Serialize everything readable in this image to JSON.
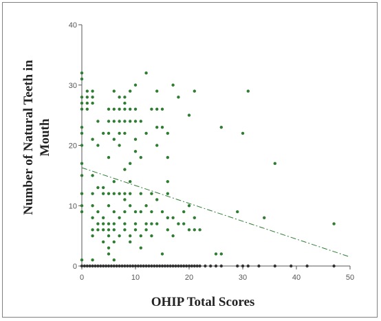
{
  "chart_data": {
    "type": "scatter",
    "xlabel": "OHIP Total Scores",
    "ylabel_lines": [
      "Number of Natural Teeth in",
      "Mouth"
    ],
    "xlim": [
      0,
      50
    ],
    "ylim": [
      0,
      40
    ],
    "x_ticks": [
      0,
      10,
      20,
      30,
      40,
      50
    ],
    "y_ticks": [
      0,
      10,
      20,
      30,
      40
    ],
    "grid": false,
    "colors": {
      "dark_points": "#333333",
      "green_points": "#2e7d32",
      "trend": "#2e7d32"
    },
    "trendline": {
      "style": "dash-dot",
      "x": [
        0,
        50
      ],
      "y": [
        16.3,
        1.5
      ]
    },
    "series": [
      {
        "color_key": "dark_points",
        "points": [
          [
            0,
            0
          ],
          [
            0.5,
            0
          ],
          [
            1,
            0
          ],
          [
            1.5,
            0
          ],
          [
            2,
            0
          ],
          [
            2.5,
            0
          ],
          [
            3,
            0
          ],
          [
            3.5,
            0
          ],
          [
            4,
            0
          ],
          [
            4.5,
            0
          ],
          [
            5,
            0
          ],
          [
            5.5,
            0
          ],
          [
            6,
            0
          ],
          [
            6.5,
            0
          ],
          [
            7,
            0
          ],
          [
            7.5,
            0
          ],
          [
            8,
            0
          ],
          [
            8.5,
            0
          ],
          [
            9,
            0
          ],
          [
            9.5,
            0
          ],
          [
            10,
            0
          ],
          [
            10.5,
            0
          ],
          [
            11,
            0
          ],
          [
            11.5,
            0
          ],
          [
            12,
            0
          ],
          [
            12.5,
            0
          ],
          [
            13,
            0
          ],
          [
            13.5,
            0
          ],
          [
            14,
            0
          ],
          [
            14.5,
            0
          ],
          [
            15,
            0
          ],
          [
            15.5,
            0
          ],
          [
            16,
            0
          ],
          [
            16.5,
            0
          ],
          [
            17,
            0
          ],
          [
            17.5,
            0
          ],
          [
            18,
            0
          ],
          [
            18.5,
            0
          ],
          [
            19,
            0
          ],
          [
            19.5,
            0
          ],
          [
            20,
            0
          ],
          [
            20.5,
            0
          ],
          [
            21,
            0
          ],
          [
            21.5,
            0
          ],
          [
            22,
            0
          ],
          [
            23,
            0
          ],
          [
            24,
            0
          ],
          [
            25,
            0
          ],
          [
            26,
            0
          ],
          [
            29,
            0
          ],
          [
            30,
            0
          ],
          [
            31,
            0
          ],
          [
            33,
            0
          ],
          [
            36,
            0
          ],
          [
            39,
            0
          ],
          [
            42,
            0
          ],
          [
            47,
            0
          ]
        ]
      },
      {
        "color_key": "green_points",
        "points": [
          [
            0,
            32
          ],
          [
            0,
            31
          ],
          [
            0,
            28
          ],
          [
            0,
            27
          ],
          [
            0,
            26
          ],
          [
            0,
            23
          ],
          [
            0,
            22
          ],
          [
            0,
            20
          ],
          [
            0,
            17
          ],
          [
            0,
            15
          ],
          [
            0,
            12
          ],
          [
            0,
            10
          ],
          [
            0,
            9
          ],
          [
            0,
            1
          ],
          [
            1,
            29
          ],
          [
            1,
            28
          ],
          [
            1,
            27
          ],
          [
            1,
            26
          ],
          [
            2,
            29
          ],
          [
            2,
            28
          ],
          [
            2,
            27
          ],
          [
            2,
            21
          ],
          [
            2,
            15
          ],
          [
            2,
            12
          ],
          [
            2,
            10
          ],
          [
            2,
            8
          ],
          [
            2,
            6
          ],
          [
            2,
            5
          ],
          [
            2,
            1
          ],
          [
            3,
            24
          ],
          [
            3,
            20
          ],
          [
            3,
            13
          ],
          [
            3,
            9
          ],
          [
            3,
            7
          ],
          [
            3,
            6
          ],
          [
            4,
            22
          ],
          [
            4,
            13
          ],
          [
            4,
            12
          ],
          [
            4,
            8
          ],
          [
            4,
            7
          ],
          [
            4,
            6
          ],
          [
            4,
            4
          ],
          [
            5,
            26
          ],
          [
            5,
            24
          ],
          [
            5,
            22
          ],
          [
            5,
            18
          ],
          [
            5,
            12
          ],
          [
            5,
            10
          ],
          [
            5,
            7
          ],
          [
            5,
            6
          ],
          [
            5,
            5
          ],
          [
            5,
            3
          ],
          [
            5,
            2
          ],
          [
            6,
            29
          ],
          [
            6,
            26
          ],
          [
            6,
            24
          ],
          [
            6,
            21
          ],
          [
            6,
            14
          ],
          [
            6,
            12
          ],
          [
            6,
            9
          ],
          [
            6,
            7
          ],
          [
            6,
            6
          ],
          [
            6,
            4
          ],
          [
            6,
            1
          ],
          [
            7,
            28
          ],
          [
            7,
            26
          ],
          [
            7,
            24
          ],
          [
            7,
            22
          ],
          [
            7,
            20
          ],
          [
            7,
            12
          ],
          [
            7,
            8
          ],
          [
            7,
            5
          ],
          [
            8,
            28
          ],
          [
            8,
            27
          ],
          [
            8,
            26
          ],
          [
            8,
            24
          ],
          [
            8,
            22
          ],
          [
            8,
            16
          ],
          [
            8,
            12
          ],
          [
            8,
            11
          ],
          [
            8,
            9
          ],
          [
            8,
            7
          ],
          [
            8,
            6
          ],
          [
            9,
            29
          ],
          [
            9,
            26
          ],
          [
            9,
            24
          ],
          [
            9,
            17
          ],
          [
            9,
            14
          ],
          [
            9,
            12
          ],
          [
            9,
            10
          ],
          [
            9,
            5
          ],
          [
            9,
            4
          ],
          [
            10,
            30
          ],
          [
            10,
            26
          ],
          [
            10,
            24
          ],
          [
            10,
            21
          ],
          [
            10,
            19
          ],
          [
            10,
            9
          ],
          [
            10,
            7
          ],
          [
            10,
            6
          ],
          [
            11,
            24
          ],
          [
            11,
            18
          ],
          [
            11,
            12
          ],
          [
            11,
            9
          ],
          [
            11,
            5
          ],
          [
            11,
            3
          ],
          [
            12,
            32
          ],
          [
            12,
            22
          ],
          [
            12,
            10
          ],
          [
            12,
            7
          ],
          [
            12,
            6
          ],
          [
            13,
            26
          ],
          [
            13,
            12
          ],
          [
            13,
            9
          ],
          [
            13,
            7
          ],
          [
            13,
            5
          ],
          [
            14,
            29
          ],
          [
            14,
            26
          ],
          [
            14,
            23
          ],
          [
            14,
            20
          ],
          [
            14,
            11
          ],
          [
            14,
            7
          ],
          [
            15,
            26
          ],
          [
            15,
            23
          ],
          [
            15,
            9
          ],
          [
            15,
            2
          ],
          [
            16,
            22
          ],
          [
            16,
            18
          ],
          [
            16,
            14
          ],
          [
            16,
            12
          ],
          [
            16,
            8
          ],
          [
            16,
            6
          ],
          [
            17,
            30
          ],
          [
            17,
            8
          ],
          [
            17,
            5
          ],
          [
            18,
            28
          ],
          [
            18,
            7
          ],
          [
            19,
            9
          ],
          [
            19,
            7
          ],
          [
            20,
            25
          ],
          [
            20,
            10
          ],
          [
            20,
            6
          ],
          [
            21,
            29
          ],
          [
            21,
            8
          ],
          [
            21,
            6
          ],
          [
            22,
            6
          ],
          [
            25,
            2
          ],
          [
            26,
            23
          ],
          [
            26,
            2
          ],
          [
            29,
            9
          ],
          [
            30,
            22
          ],
          [
            31,
            29
          ],
          [
            34,
            8
          ],
          [
            36,
            17
          ],
          [
            47,
            7
          ]
        ]
      }
    ]
  }
}
